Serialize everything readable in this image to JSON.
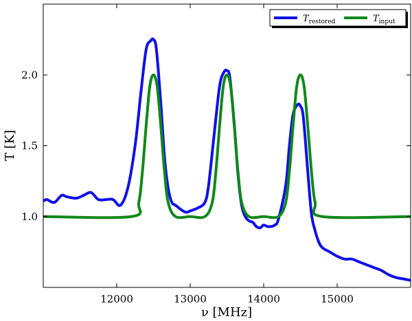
{
  "chart_data": {
    "type": "line",
    "xlabel": "ν [MHz]",
    "ylabel": "T [K]",
    "xlim": [
      11000,
      16000
    ],
    "ylim": [
      0.5,
      2.5
    ],
    "xticks": [
      12000,
      13000,
      14000,
      15000
    ],
    "xtick_labels": [
      "12000",
      "13000",
      "14000",
      "15000"
    ],
    "yticks": [
      1.0,
      1.5,
      2.0
    ],
    "ytick_labels": [
      "1.0",
      "1.5",
      "2.0"
    ],
    "grid": false,
    "legend": {
      "placement": "top-right",
      "columns": 2
    },
    "series": [
      {
        "name": "T_restored",
        "legend_main": "T",
        "legend_sub": "restored",
        "color": "#1010e8",
        "x": [
          11000,
          11050,
          11150,
          11250,
          11320,
          11450,
          11550,
          11650,
          11750,
          11850,
          11950,
          12050,
          12150,
          12250,
          12330,
          12400,
          12460,
          12500,
          12540,
          12600,
          12650,
          12700,
          12750,
          12800,
          12900,
          12950,
          13000,
          13100,
          13200,
          13250,
          13320,
          13400,
          13460,
          13500,
          13540,
          13600,
          13650,
          13700,
          13750,
          13800,
          13850,
          13900,
          13950,
          14000,
          14050,
          14100,
          14150,
          14200,
          14300,
          14350,
          14400,
          14460,
          14500,
          14540,
          14600,
          14650,
          14700,
          14750,
          14800,
          14900,
          15000,
          15100,
          15200,
          15300,
          15400,
          15500,
          15600,
          15700,
          15800,
          15900,
          16000
        ],
        "y": [
          1.11,
          1.12,
          1.1,
          1.15,
          1.14,
          1.13,
          1.15,
          1.17,
          1.12,
          1.12,
          1.12,
          1.08,
          1.2,
          1.5,
          1.88,
          2.18,
          2.24,
          2.25,
          2.18,
          1.8,
          1.42,
          1.2,
          1.1,
          1.08,
          1.04,
          1.03,
          1.04,
          1.06,
          1.1,
          1.22,
          1.55,
          1.92,
          2.02,
          2.03,
          1.98,
          1.65,
          1.3,
          1.08,
          1.0,
          0.97,
          0.96,
          0.93,
          0.92,
          0.94,
          0.93,
          0.93,
          0.94,
          0.98,
          1.22,
          1.5,
          1.72,
          1.79,
          1.78,
          1.7,
          1.32,
          1.02,
          0.9,
          0.82,
          0.78,
          0.75,
          0.72,
          0.7,
          0.7,
          0.68,
          0.66,
          0.64,
          0.62,
          0.59,
          0.57,
          0.56,
          0.55
        ]
      },
      {
        "name": "T_input",
        "legend_main": "T",
        "legend_sub": "input",
        "color": "#10881a",
        "x": [
          11000,
          12200,
          12300,
          12350,
          12400,
          12450,
          12500,
          12550,
          12600,
          12650,
          12700,
          12800,
          13000,
          13200,
          13300,
          13350,
          13400,
          13450,
          13500,
          13550,
          13600,
          13650,
          13700,
          13800,
          14000,
          14200,
          14300,
          14350,
          14400,
          14450,
          14500,
          14550,
          14600,
          14650,
          14700,
          14800,
          16000
        ],
        "y": [
          1.0,
          1.0,
          1.1,
          1.32,
          1.64,
          1.92,
          2.0,
          1.92,
          1.64,
          1.32,
          1.1,
          1.0,
          1.0,
          1.0,
          1.1,
          1.32,
          1.64,
          1.92,
          2.0,
          1.92,
          1.64,
          1.32,
          1.1,
          1.0,
          1.0,
          1.0,
          1.1,
          1.32,
          1.64,
          1.92,
          2.0,
          1.92,
          1.64,
          1.32,
          1.1,
          1.0,
          1.0
        ]
      }
    ]
  }
}
